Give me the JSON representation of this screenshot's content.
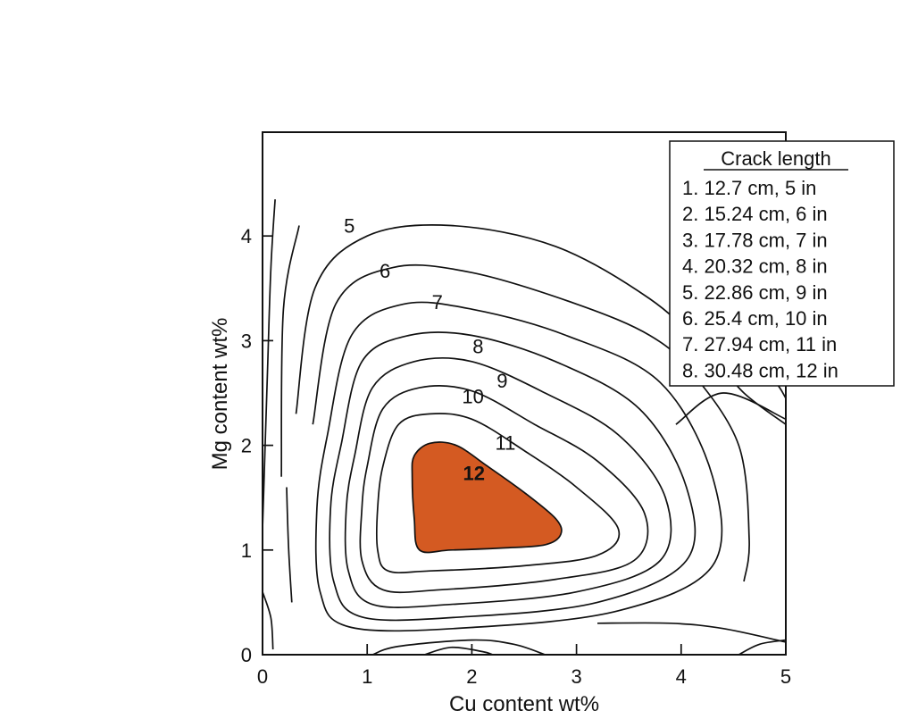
{
  "chart_data": {
    "type": "contour",
    "xlabel": "Cu content wt%",
    "ylabel": "Mg content wt%",
    "xlim": [
      0,
      5
    ],
    "ylim": [
      0,
      5
    ],
    "x_ticks": [
      "0",
      "1",
      "2",
      "3",
      "4",
      "5"
    ],
    "y_ticks": [
      "0",
      "1",
      "2",
      "3",
      "4"
    ],
    "legend": {
      "title": "Crack length",
      "placement": "top-right",
      "entries": [
        "1. 12.7 cm, 5 in",
        "2. 15.24 cm, 6 in",
        "3. 17.78 cm, 7 in",
        "4. 20.32 cm, 8 in",
        "5. 22.86 cm, 9 in",
        "6. 25.4 cm, 10 in",
        "7. 27.94 cm, 11 in",
        "8. 30.48 cm, 12 in"
      ]
    },
    "contour_labels": [
      {
        "text": "5",
        "x": 0.83,
        "y": 4.03
      },
      {
        "text": "6",
        "x": 1.17,
        "y": 3.6
      },
      {
        "text": "7",
        "x": 1.67,
        "y": 3.3
      },
      {
        "text": "8",
        "x": 2.06,
        "y": 2.88
      },
      {
        "text": "9",
        "x": 2.29,
        "y": 2.55
      },
      {
        "text": "10",
        "x": 2.01,
        "y": 2.4
      },
      {
        "text": "11",
        "x": 2.32,
        "y": 1.96
      },
      {
        "text": "12",
        "x": 2.02,
        "y": 1.67
      }
    ],
    "peak": {
      "label": "12",
      "fill": "#d45a22"
    },
    "contours": [
      {
        "level": 12,
        "filled": true,
        "points": [
          [
            1.45,
            1.9
          ],
          [
            1.6,
            2.02
          ],
          [
            1.85,
            2.0
          ],
          [
            2.15,
            1.8
          ],
          [
            2.5,
            1.55
          ],
          [
            2.8,
            1.3
          ],
          [
            2.85,
            1.15
          ],
          [
            2.7,
            1.05
          ],
          [
            2.3,
            1.02
          ],
          [
            1.8,
            1.0
          ],
          [
            1.5,
            1.0
          ],
          [
            1.45,
            1.3
          ],
          [
            1.43,
            1.7
          ]
        ]
      },
      {
        "level": 11,
        "points": [
          [
            1.15,
            1.8
          ],
          [
            1.3,
            2.2
          ],
          [
            1.6,
            2.3
          ],
          [
            2.0,
            2.25
          ],
          [
            2.5,
            1.95
          ],
          [
            3.0,
            1.6
          ],
          [
            3.4,
            1.2
          ],
          [
            3.2,
            0.95
          ],
          [
            2.5,
            0.85
          ],
          [
            1.6,
            0.8
          ],
          [
            1.2,
            0.8
          ],
          [
            1.1,
            1.0
          ],
          [
            1.1,
            1.4
          ],
          [
            1.15,
            1.8
          ]
        ]
      },
      {
        "level": 10,
        "points": [
          [
            1.0,
            1.8
          ],
          [
            1.15,
            2.35
          ],
          [
            1.5,
            2.55
          ],
          [
            2.0,
            2.52
          ],
          [
            2.6,
            2.2
          ],
          [
            3.2,
            1.85
          ],
          [
            3.65,
            1.35
          ],
          [
            3.55,
            0.9
          ],
          [
            2.8,
            0.72
          ],
          [
            1.7,
            0.62
          ],
          [
            1.15,
            0.62
          ],
          [
            0.95,
            0.9
          ],
          [
            0.95,
            1.4
          ],
          [
            1.0,
            1.8
          ]
        ]
      },
      {
        "level": 9,
        "points": [
          [
            0.88,
            1.9
          ],
          [
            1.05,
            2.55
          ],
          [
            1.45,
            2.8
          ],
          [
            2.0,
            2.8
          ],
          [
            2.7,
            2.5
          ],
          [
            3.4,
            2.1
          ],
          [
            3.85,
            1.5
          ],
          [
            3.8,
            0.9
          ],
          [
            3.0,
            0.6
          ],
          [
            1.8,
            0.48
          ],
          [
            1.05,
            0.48
          ],
          [
            0.82,
            0.8
          ],
          [
            0.8,
            1.4
          ],
          [
            0.88,
            1.9
          ]
        ]
      },
      {
        "level": 8,
        "points": [
          [
            0.75,
            2.0
          ],
          [
            0.95,
            2.8
          ],
          [
            1.4,
            3.05
          ],
          [
            2.0,
            3.05
          ],
          [
            2.8,
            2.8
          ],
          [
            3.6,
            2.35
          ],
          [
            4.05,
            1.6
          ],
          [
            4.05,
            0.9
          ],
          [
            3.2,
            0.5
          ],
          [
            1.9,
            0.36
          ],
          [
            0.95,
            0.36
          ],
          [
            0.68,
            0.7
          ],
          [
            0.65,
            1.4
          ],
          [
            0.75,
            2.0
          ]
        ]
      },
      {
        "level": 7,
        "points": [
          [
            0.62,
            2.1
          ],
          [
            0.85,
            3.05
          ],
          [
            1.35,
            3.35
          ],
          [
            2.0,
            3.3
          ],
          [
            2.9,
            3.05
          ],
          [
            3.8,
            2.6
          ],
          [
            4.3,
            1.7
          ],
          [
            4.3,
            0.85
          ],
          [
            3.4,
            0.42
          ],
          [
            2.0,
            0.26
          ],
          [
            0.85,
            0.26
          ],
          [
            0.55,
            0.6
          ],
          [
            0.52,
            1.4
          ],
          [
            0.62,
            2.1
          ]
        ]
      },
      {
        "level": 6,
        "points": [
          [
            0.48,
            2.2
          ],
          [
            0.7,
            3.35
          ],
          [
            1.25,
            3.7
          ],
          [
            2.0,
            3.65
          ],
          [
            3.0,
            3.35
          ],
          [
            3.7,
            3.05
          ],
          [
            4.1,
            2.7
          ],
          [
            4.55,
            2.0
          ],
          [
            4.65,
            1.1
          ],
          [
            4.6,
            0.7
          ]
        ]
      },
      {
        "level": 5,
        "points": [
          [
            0.32,
            2.3
          ],
          [
            0.5,
            3.5
          ],
          [
            1.0,
            4.0
          ],
          [
            1.8,
            4.1
          ],
          [
            2.8,
            3.9
          ],
          [
            3.7,
            3.4
          ],
          [
            4.25,
            2.9
          ],
          [
            4.6,
            2.5
          ],
          [
            5.0,
            2.2
          ]
        ]
      },
      {
        "level": 4,
        "points": [
          [
            0.18,
            1.7
          ],
          [
            0.2,
            3.3
          ],
          [
            0.35,
            4.1
          ]
        ]
      },
      {
        "level": 3,
        "points": [
          [
            0.0,
            1.2
          ],
          [
            0.05,
            2.8
          ],
          [
            0.08,
            3.7
          ],
          [
            0.12,
            4.35
          ]
        ]
      },
      {
        "level": 2,
        "points": [
          [
            0.28,
            0.5
          ],
          [
            0.25,
            1.0
          ],
          [
            0.23,
            1.6
          ]
        ]
      },
      {
        "level": 1,
        "points": [
          [
            0.0,
            0.6
          ],
          [
            0.08,
            0.35
          ],
          [
            0.1,
            0.05
          ]
        ]
      },
      {
        "level": 6,
        "points": [
          [
            1.05,
            0.0
          ],
          [
            1.3,
            0.08
          ],
          [
            2.0,
            0.14
          ],
          [
            2.4,
            0.1
          ],
          [
            2.7,
            0.0
          ]
        ]
      },
      {
        "level": 7,
        "points": [
          [
            1.55,
            0.0
          ],
          [
            1.8,
            0.07
          ],
          [
            2.1,
            0.03
          ],
          [
            2.2,
            0.0
          ]
        ]
      },
      {
        "level": 6,
        "points": [
          [
            3.2,
            0.3
          ],
          [
            3.9,
            0.3
          ],
          [
            4.4,
            0.25
          ],
          [
            5.0,
            0.12
          ]
        ]
      },
      {
        "level": 5,
        "points": [
          [
            4.55,
            0.0
          ],
          [
            4.75,
            0.1
          ],
          [
            5.0,
            0.14
          ]
        ]
      },
      {
        "level": 4,
        "points": [
          [
            3.95,
            2.2
          ],
          [
            4.4,
            2.5
          ],
          [
            5.0,
            2.25
          ]
        ]
      },
      {
        "level": 4,
        "points": [
          [
            4.7,
            2.7
          ],
          [
            4.9,
            2.6
          ],
          [
            5.0,
            2.45
          ]
        ]
      }
    ]
  }
}
